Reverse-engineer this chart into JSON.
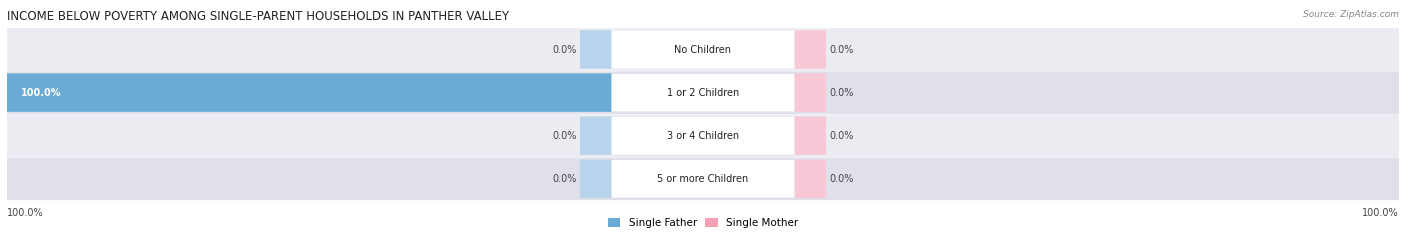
{
  "title": "INCOME BELOW POVERTY AMONG SINGLE-PARENT HOUSEHOLDS IN PANTHER VALLEY",
  "source": "Source: ZipAtlas.com",
  "categories": [
    "No Children",
    "1 or 2 Children",
    "3 or 4 Children",
    "5 or more Children"
  ],
  "single_father": [
    0.0,
    100.0,
    0.0,
    0.0
  ],
  "single_mother": [
    0.0,
    0.0,
    0.0,
    0.0
  ],
  "father_color": "#6aabd6",
  "mother_color": "#f4a0b5",
  "father_color_light": "#b8d4ec",
  "mother_color_light": "#f9c8d6",
  "row_bg_even": "#ebebf2",
  "row_bg_odd": "#e0e0ea",
  "text_color_dark": "#222222",
  "text_color_white": "#ffffff",
  "label_color": "#444444",
  "title_color": "#222222",
  "source_color": "#888888",
  "max_value": 100.0,
  "legend_father": "Single Father",
  "legend_mother": "Single Mother",
  "figsize": [
    14.06,
    2.33
  ],
  "dpi": 100
}
